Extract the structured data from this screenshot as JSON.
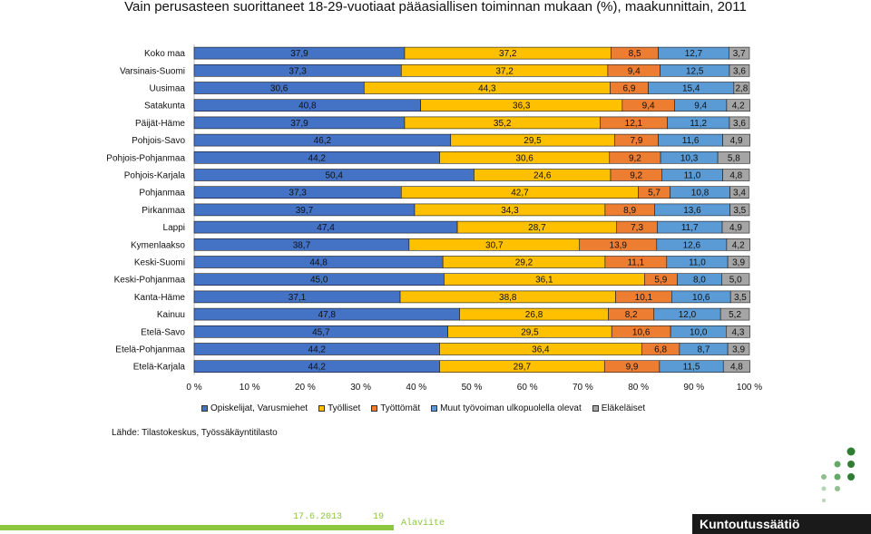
{
  "chart_data": {
    "type": "bar",
    "orientation": "horizontal",
    "stacked": "percent",
    "title": "Vain perusasteen suorittaneet 18-29-vuotiaat pääasiallisen toiminnan mukaan (%), maakunnittain, 2011",
    "categories": [
      "Koko maa",
      "Varsinais-Suomi",
      "Uusimaa",
      "Satakunta",
      "Päijät-Häme",
      "Pohjois-Savo",
      "Pohjois-Pohjanmaa",
      "Pohjois-Karjala",
      "Pohjanmaa",
      "Pirkanmaa",
      "Lappi",
      "Kymenlaakso",
      "Keski-Suomi",
      "Keski-Pohjanmaa",
      "Kanta-Häme",
      "Kainuu",
      "Etelä-Savo",
      "Etelä-Pohjanmaa",
      "Etelä-Karjala"
    ],
    "series": [
      {
        "name": "Opiskelijat, Varusmiehet",
        "color": "#4472c4",
        "values": [
          37.9,
          37.3,
          30.6,
          40.8,
          37.9,
          46.2,
          44.2,
          50.4,
          37.3,
          39.7,
          47.4,
          38.7,
          44.8,
          45.0,
          37.1,
          47.8,
          45.7,
          44.2,
          44.2
        ]
      },
      {
        "name": "Työlliset",
        "color": "#ffc000",
        "values": [
          37.2,
          37.2,
          44.3,
          36.3,
          35.2,
          29.5,
          30.6,
          24.6,
          42.7,
          34.3,
          28.7,
          30.7,
          29.2,
          36.1,
          38.8,
          26.8,
          29.5,
          36.4,
          29.7
        ]
      },
      {
        "name": "Työttömät",
        "color": "#ed7d31",
        "values": [
          8.5,
          9.4,
          6.9,
          9.4,
          12.1,
          7.9,
          9.2,
          9.2,
          5.7,
          8.9,
          7.3,
          13.9,
          11.1,
          5.9,
          10.1,
          8.2,
          10.6,
          6.8,
          9.9
        ]
      },
      {
        "name": "Muut työvoiman ulkopuolella olevat",
        "color": "#5b9bd5",
        "values": [
          12.7,
          12.5,
          15.4,
          9.4,
          11.2,
          11.6,
          10.3,
          11.0,
          10.8,
          13.6,
          11.7,
          12.6,
          11.0,
          8.0,
          10.6,
          12.0,
          10.0,
          8.7,
          11.5
        ]
      },
      {
        "name": "Eläkeläiset",
        "color": "#a5a5a5",
        "values": [
          3.7,
          3.6,
          2.8,
          4.2,
          3.6,
          4.9,
          5.8,
          4.8,
          3.4,
          3.5,
          4.9,
          4.2,
          3.9,
          5.0,
          3.5,
          5.2,
          4.3,
          3.9,
          4.8
        ]
      }
    ],
    "value_labels": [
      [
        "37,9",
        "37,2",
        "8,5",
        "12,7",
        "3,7"
      ],
      [
        "37,3",
        "37,2",
        "9,4",
        "12,5",
        "3,6"
      ],
      [
        "30,6",
        "44,3",
        "6,9",
        "15,4",
        "2,8"
      ],
      [
        "40,8",
        "36,3",
        "9,4",
        "9,4",
        "4,2"
      ],
      [
        "37,9",
        "35,2",
        "12,1",
        "11,2",
        "3,6"
      ],
      [
        "46,2",
        "29,5",
        "7,9",
        "11,6",
        "4,9"
      ],
      [
        "44,2",
        "30,6",
        "9,2",
        "10,3",
        "5,8"
      ],
      [
        "50,4",
        "24,6",
        "9,2",
        "11,0",
        "4,8"
      ],
      [
        "37,3",
        "42,7",
        "5,7",
        "10,8",
        "3,4"
      ],
      [
        "39,7",
        "34,3",
        "8,9",
        "13,6",
        "3,5"
      ],
      [
        "47,4",
        "28,7",
        "7,3",
        "11,7",
        "4,9"
      ],
      [
        "38,7",
        "30,7",
        "13,9",
        "12,6",
        "4,2"
      ],
      [
        "44,8",
        "29,2",
        "11,1",
        "11,0",
        "3,9"
      ],
      [
        "45,0",
        "36,1",
        "5,9",
        "8,0",
        "5,0"
      ],
      [
        "37,1",
        "38,8",
        "10,1",
        "10,6",
        "3,5"
      ],
      [
        "47,8",
        "26,8",
        "8,2",
        "12,0",
        "5,2"
      ],
      [
        "45,7",
        "29,5",
        "10,6",
        "10,0",
        "4,3"
      ],
      [
        "44,2",
        "36,4",
        "6,8",
        "8,7",
        "3,9"
      ],
      [
        "44,2",
        "29,7",
        "9,9",
        "11,5",
        "4,8"
      ]
    ],
    "xticks": [
      "0 %",
      "10 %",
      "20 %",
      "30 %",
      "40 %",
      "50 %",
      "60 %",
      "70 %",
      "80 %",
      "90 %",
      "100 %"
    ],
    "xlim": [
      0,
      100
    ],
    "legend_position": "bottom",
    "grid": false
  },
  "source": "Lähde: Tilastokeskus, Työssäkäyntitilasto",
  "footer": {
    "date": "17.6.2013",
    "page": "19",
    "note": "Alaviite",
    "brand": "Kuntoutussäätiö"
  },
  "colors": {
    "accent_green": "#8dc63f",
    "logo_dark_green": "#2e7d32",
    "logo_mid_green": "#66a866",
    "logo_light_green": "#b5d6b5"
  }
}
